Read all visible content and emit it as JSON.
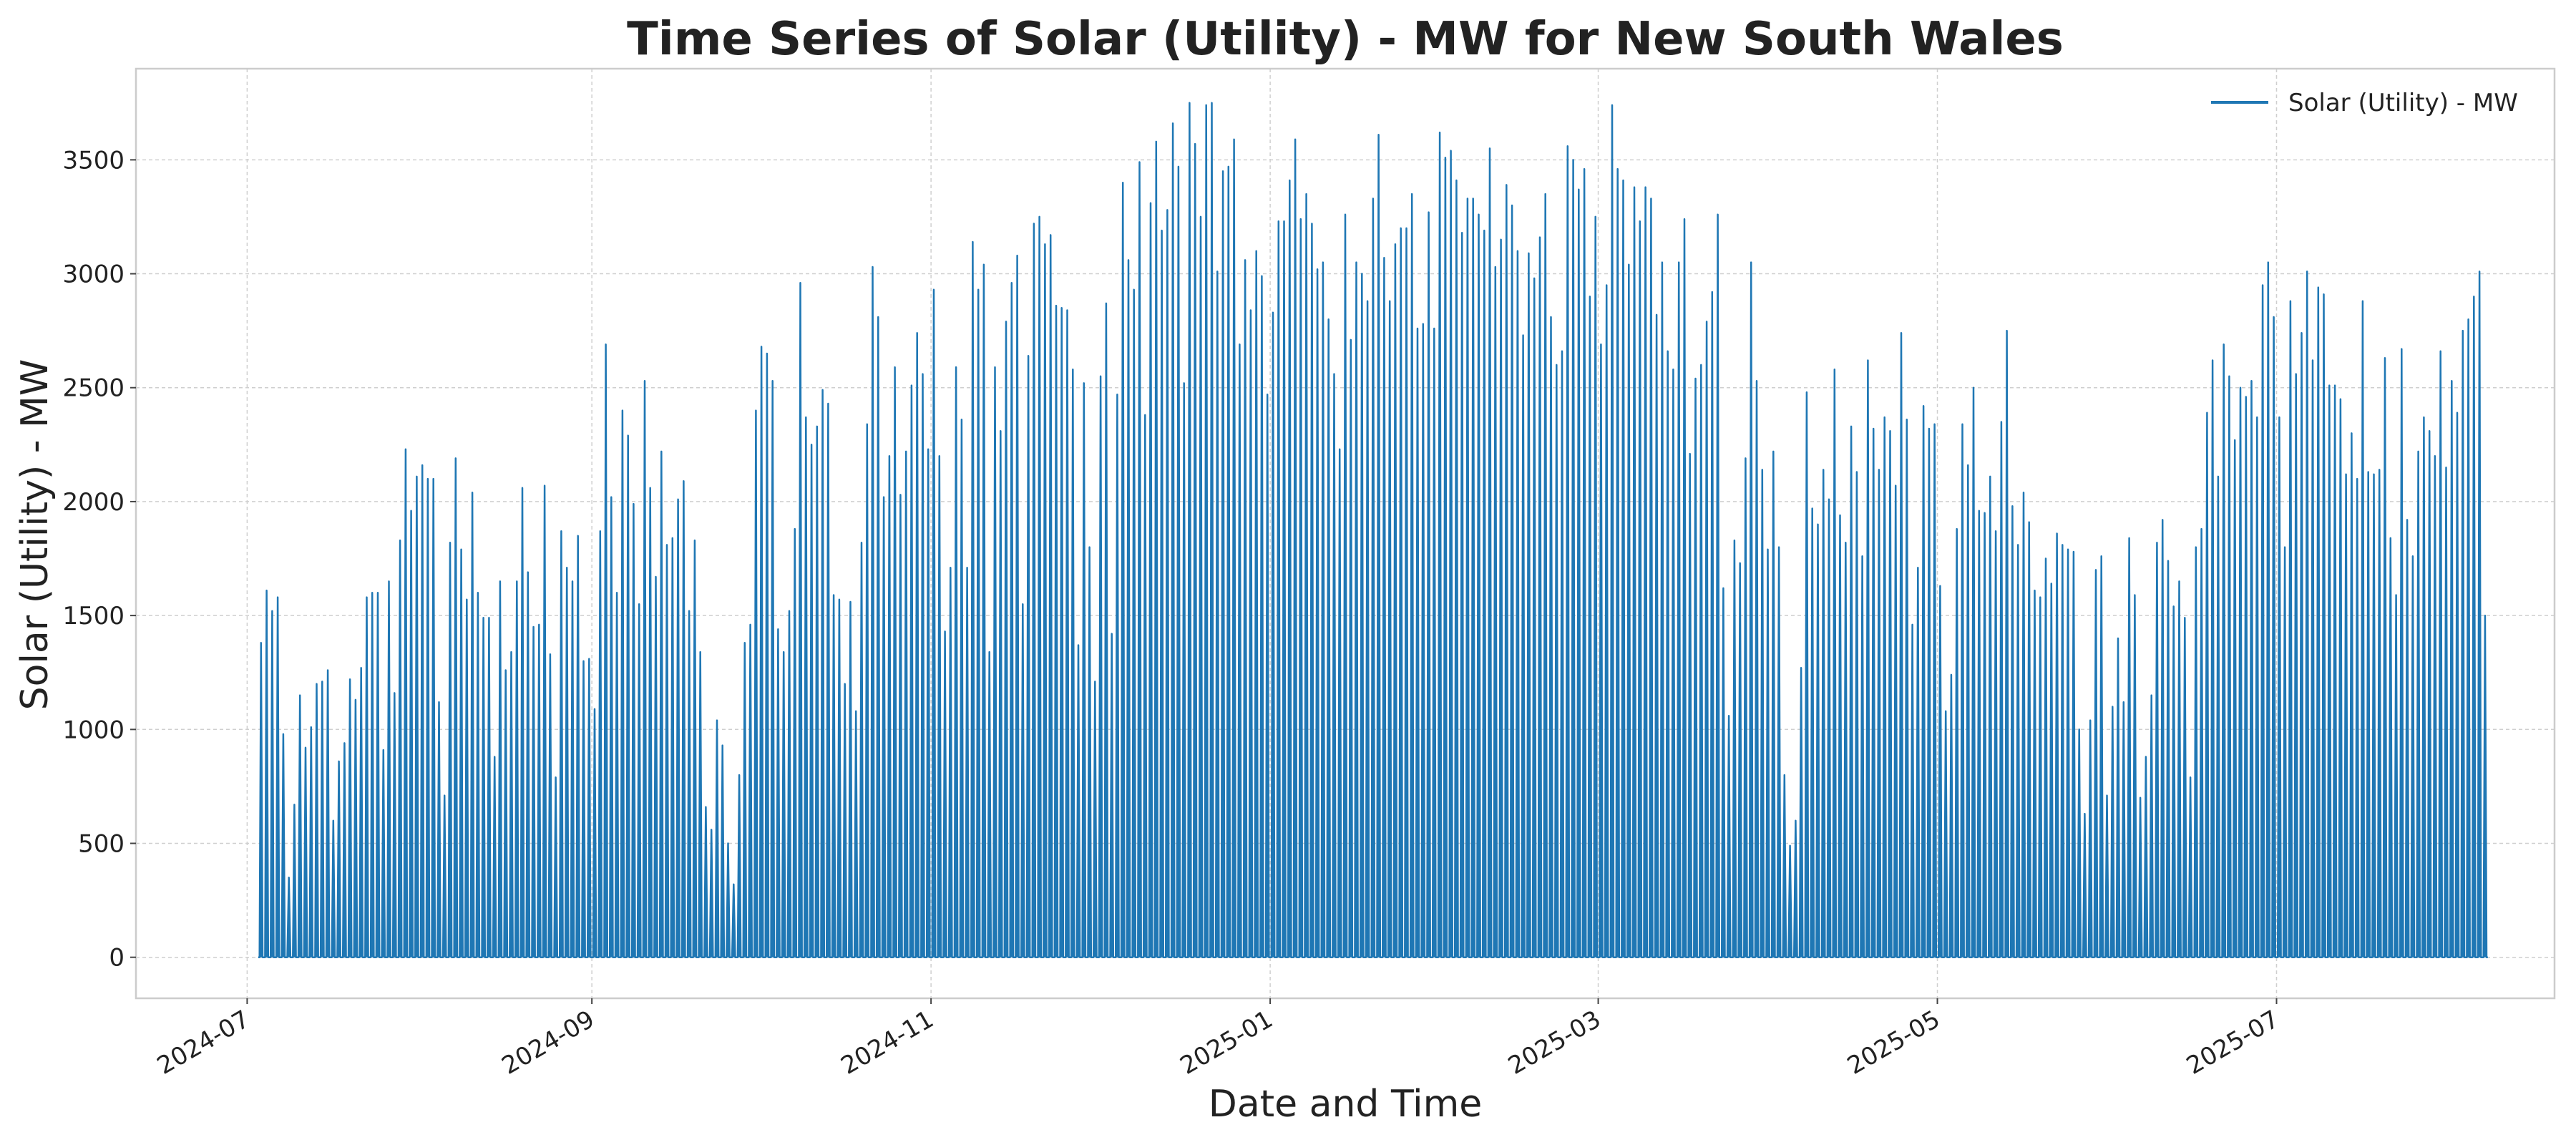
{
  "chart_data": {
    "type": "line",
    "title": "Time Series of Solar (Utility) -  MW for New South Wales",
    "xlabel": "Date and Time",
    "ylabel": "Solar (Utility) -  MW",
    "xlim": [
      "2024-06-11",
      "2025-08-20"
    ],
    "ylim": [
      -180,
      3900
    ],
    "grid": true,
    "legend_position": "top-right",
    "line_color": "#1f77b4",
    "x_ticks": [
      "2024-07",
      "2024-09",
      "2024-11",
      "2025-01",
      "2025-03",
      "2025-05",
      "2025-07"
    ],
    "y_ticks": [
      0,
      500,
      1000,
      1500,
      2000,
      2500,
      3000,
      3500
    ],
    "series": [
      {
        "name": "Solar (Utility) -  MW",
        "start_date": "2024-07-03",
        "daily_peak_mw": [
          1380,
          1610,
          1520,
          1580,
          980,
          350,
          670,
          1150,
          920,
          1010,
          1200,
          1210,
          1260,
          600,
          860,
          940,
          1220,
          1130,
          1270,
          1580,
          1600,
          1600,
          910,
          1650,
          1160,
          1830,
          2230,
          1960,
          2110,
          2160,
          2100,
          2100,
          1120,
          710,
          1820,
          2190,
          1790,
          1570,
          2040,
          1600,
          1490,
          1490,
          880,
          1650,
          1260,
          1340,
          1650,
          2060,
          1690,
          1450,
          1460,
          2070,
          1330,
          790,
          1870,
          1710,
          1650,
          1850,
          1300,
          1310,
          1090,
          1870,
          2690,
          2020,
          1600,
          2400,
          2290,
          1990,
          1550,
          2530,
          2060,
          1670,
          2220,
          1810,
          1840,
          2010,
          2090,
          1520,
          1830,
          1340,
          660,
          560,
          1040,
          930,
          500,
          320,
          800,
          1380,
          1460,
          2400,
          2680,
          2650,
          2530,
          1440,
          1340,
          1520,
          1880,
          2960,
          2370,
          2250,
          2330,
          2490,
          2430,
          1590,
          1570,
          1200,
          1560,
          1080,
          1820,
          2340,
          3030,
          2810,
          2020,
          2200,
          2590,
          2030,
          2220,
          2510,
          2740,
          2560,
          2230,
          2930,
          2200,
          1430,
          1710,
          2590,
          2360,
          1710,
          3140,
          2930,
          3040,
          1340,
          2590,
          2310,
          2790,
          2960,
          3080,
          1550,
          2640,
          3220,
          3250,
          3130,
          3170,
          2860,
          2850,
          2840,
          2580,
          1370,
          2520,
          1800,
          1210,
          2550,
          2870,
          1420,
          2470,
          3400,
          3060,
          2930,
          3490,
          2380,
          3310,
          3580,
          3190,
          3280,
          3660,
          3470,
          2520,
          3750,
          3570,
          3250,
          3740,
          3750,
          3010,
          3450,
          3470,
          3590,
          2690,
          3060,
          2840,
          3100,
          2990,
          2470,
          2830,
          3230,
          3230,
          3410,
          3590,
          3240,
          3350,
          3220,
          3020,
          3050,
          2800,
          2560,
          2230,
          3260,
          2710,
          3050,
          3000,
          2880,
          3330,
          3610,
          3070,
          2880,
          3130,
          3200,
          3200,
          3350,
          2760,
          2780,
          3270,
          2760,
          3620,
          3510,
          3540,
          3410,
          3180,
          3330,
          3330,
          3260,
          3190,
          3550,
          3030,
          3150,
          3390,
          3300,
          3100,
          2730,
          3090,
          2980,
          3160,
          3350,
          2810,
          2600,
          2660,
          3560,
          3500,
          3370,
          3460,
          2900,
          3250,
          2690,
          2950,
          3740,
          3460,
          3410,
          3040,
          3380,
          3230,
          3380,
          3330,
          2820,
          3050,
          2660,
          2580,
          3050,
          3240,
          2210,
          2540,
          2600,
          2790,
          2920,
          3260,
          1620,
          1060,
          1830,
          1730,
          2190,
          3050,
          2530,
          2140,
          1790,
          2220,
          1800,
          800,
          490,
          600,
          1270,
          2480,
          1970,
          1900,
          2140,
          2010,
          2580,
          1940,
          1820,
          2330,
          2130,
          1760,
          2620,
          2320,
          2140,
          2370,
          2310,
          2070,
          2740,
          2360,
          1460,
          1710,
          2420,
          2320,
          2340,
          1630,
          1080,
          1240,
          1880,
          2340,
          2160,
          2500,
          1960,
          1950,
          2110,
          1870,
          2350,
          2750,
          1980,
          1810,
          2040,
          1910,
          1610,
          1580,
          1750,
          1640,
          1860,
          1810,
          1790,
          1780,
          1000,
          630,
          1040,
          1700,
          1760,
          710,
          1100,
          1400,
          1120,
          1840,
          1590,
          700,
          880,
          1150,
          1820,
          1920,
          1740,
          1540,
          1650,
          1490,
          790,
          1800,
          1880,
          2390,
          2620,
          2110,
          2690,
          2550,
          2270,
          2500,
          2460,
          2530,
          2370,
          2950,
          3050,
          2810,
          2370,
          1800,
          2880,
          2560,
          2740,
          3010,
          2620,
          2940,
          2910,
          2510,
          2510,
          2450,
          2120,
          2300,
          2100,
          2880,
          2130,
          2120,
          2140,
          2630,
          1840,
          1590,
          2670,
          1920,
          1760,
          2220,
          2370,
          2310,
          2200,
          2660,
          2150,
          2530,
          2390,
          2750,
          2800,
          2900,
          3010,
          1500
        ]
      }
    ]
  }
}
